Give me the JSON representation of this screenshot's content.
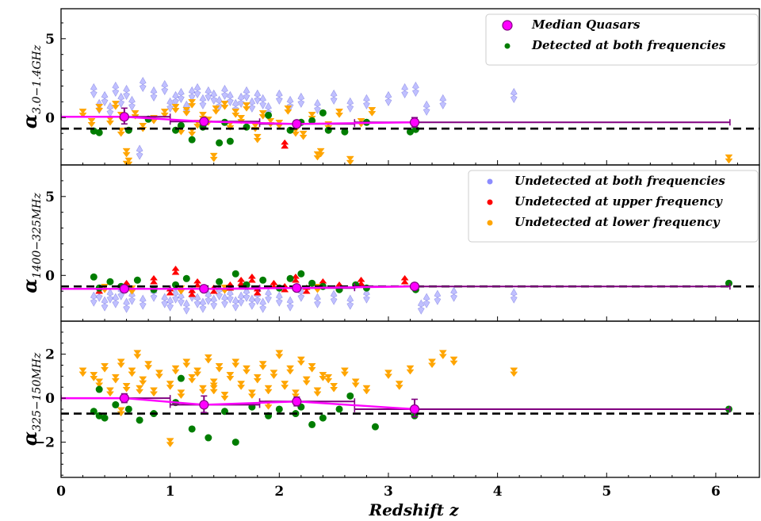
{
  "chart_data": {
    "type": "scatter",
    "x_axis": {
      "label": "Redshift z",
      "range": [
        0,
        6.4
      ],
      "ticks": [
        0,
        1,
        2,
        3,
        4,
        5,
        6
      ],
      "tick_labels": [
        "0",
        "1",
        "2",
        "3",
        "4",
        "5",
        "6"
      ]
    },
    "panels": [
      {
        "ylabel": "α3.0−1.4GHz",
        "ylabel_main": "α",
        "ylabel_sub": "3.0−1.4GHz",
        "ylim": [
          -3.0,
          6.9
        ],
        "yticks": [
          0,
          5
        ],
        "ytick_labels": [
          "0",
          "5"
        ],
        "reference_line": -0.7,
        "median": {
          "z": [
            0.58,
            1.31,
            2.16,
            3.24
          ],
          "alpha": [
            0.05,
            -0.25,
            -0.4,
            -0.3
          ],
          "err_low": [
            0.45,
            0.2,
            0.2,
            0.3
          ],
          "err_high": [
            0.55,
            0.15,
            0.2,
            0.3
          ],
          "bin_edges": [
            0,
            1.0,
            1.82,
            2.69,
            6.13
          ]
        },
        "detected_both": {
          "z": [
            0.3,
            0.35,
            0.62,
            0.8,
            1.05,
            1.1,
            1.2,
            1.3,
            1.45,
            1.5,
            1.55,
            1.7,
            1.9,
            2.1,
            2.2,
            2.3,
            2.45,
            2.6,
            2.8,
            3.2,
            3.25,
            2.4
          ],
          "alpha": [
            -0.85,
            -0.95,
            -0.8,
            -0.1,
            -0.8,
            -0.5,
            -1.4,
            -0.6,
            -1.6,
            -0.3,
            -1.5,
            -0.6,
            0.15,
            -0.8,
            -0.3,
            -0.2,
            -0.8,
            -0.9,
            -0.3,
            -0.9,
            -0.75,
            0.3
          ]
        },
        "undetected_upper": {
          "z": [
            2.05
          ],
          "alpha": [
            -1.7
          ]
        },
        "undetected_lower": {
          "z": [
            0.2,
            0.28,
            0.35,
            0.45,
            0.5,
            0.55,
            0.6,
            0.62,
            0.68,
            0.75,
            0.85,
            0.95,
            1.05,
            1.1,
            1.15,
            1.2,
            1.25,
            1.3,
            1.35,
            1.42,
            1.5,
            1.55,
            1.6,
            1.65,
            1.7,
            1.78,
            1.85,
            1.92,
            2.0,
            2.08,
            2.15,
            2.22,
            2.3,
            2.38,
            2.45,
            2.55,
            2.65,
            2.75,
            2.85,
            6.12,
            0.55,
            0.6,
            1.2,
            1.4,
            1.8,
            2.35
          ],
          "alpha": [
            0.3,
            -0.3,
            0.6,
            -0.2,
            0.8,
            -0.9,
            -2.2,
            -2.8,
            0.2,
            -0.6,
            -0.1,
            0.3,
            0.6,
            -0.8,
            0.4,
            0.9,
            -0.4,
            0.1,
            -0.2,
            0.5,
            0.8,
            -0.5,
            0.3,
            -0.1,
            0.7,
            -0.6,
            0.2,
            -0.3,
            -0.4,
            0.5,
            -0.9,
            -1.1,
            0.1,
            -2.2,
            -0.5,
            0.3,
            -2.7,
            -0.3,
            0.4,
            -2.6,
            0.1,
            -3.0,
            -0.9,
            -2.5,
            -1.3,
            -2.4
          ]
        },
        "undetected_both": {
          "z": [
            0.3,
            0.35,
            0.4,
            0.45,
            0.5,
            0.55,
            0.6,
            0.65,
            0.75,
            0.85,
            0.95,
            1.0,
            1.05,
            1.1,
            1.15,
            1.2,
            1.25,
            1.3,
            1.35,
            1.4,
            1.45,
            1.5,
            1.55,
            1.6,
            1.65,
            1.7,
            1.75,
            1.8,
            1.85,
            1.9,
            2.0,
            2.1,
            2.2,
            2.35,
            2.5,
            2.65,
            2.8,
            3.0,
            3.15,
            3.25,
            3.35,
            3.5,
            4.15,
            0.72
          ],
          "alpha": [
            1.7,
            0.7,
            1.2,
            0.5,
            1.8,
            1.1,
            1.6,
            0.9,
            2.1,
            1.5,
            1.9,
            0.8,
            1.2,
            1.4,
            0.6,
            1.5,
            1.7,
            1.0,
            1.5,
            1.3,
            0.9,
            1.6,
            1.2,
            0.7,
            1.1,
            1.5,
            0.8,
            1.3,
            1.0,
            0.5,
            1.3,
            0.9,
            1.1,
            0.7,
            1.3,
            0.8,
            1.0,
            1.2,
            1.7,
            1.8,
            0.6,
            1.0,
            1.4,
            -2.2
          ]
        }
      },
      {
        "ylabel": "α1400−325MHz",
        "ylabel_main": "α",
        "ylabel_sub": "1400−325MHz",
        "ylim": [
          -2.9,
          7.0
        ],
        "yticks": [
          0,
          5
        ],
        "ytick_labels": [
          "0",
          "5"
        ],
        "reference_line": -0.7,
        "median": {
          "z": [
            0.58,
            1.31,
            2.16,
            3.24
          ],
          "alpha": [
            -0.85,
            -0.85,
            -0.8,
            -0.7
          ],
          "err_low": [
            0.1,
            0.1,
            0.1,
            0.1
          ],
          "err_high": [
            0.1,
            0.1,
            0.1,
            0.1
          ],
          "bin_edges": [
            0,
            1.0,
            1.82,
            2.69,
            6.13
          ]
        },
        "detected_both": {
          "z": [
            0.3,
            0.35,
            0.45,
            0.55,
            0.7,
            0.85,
            1.05,
            1.15,
            1.3,
            1.45,
            1.6,
            1.7,
            1.85,
            2.0,
            2.1,
            2.2,
            2.3,
            2.4,
            2.55,
            2.7,
            2.8,
            3.25,
            6.12
          ],
          "alpha": [
            -0.1,
            -0.8,
            -0.4,
            -0.7,
            -0.3,
            -0.9,
            -0.6,
            -0.2,
            -0.8,
            -0.4,
            0.1,
            -0.6,
            -0.3,
            -0.8,
            -0.2,
            0.1,
            -0.5,
            -0.7,
            -0.9,
            -0.6,
            -0.8,
            -0.9,
            -0.5
          ]
        },
        "undetected_upper": {
          "z": [
            0.35,
            0.6,
            0.85,
            1.0,
            1.05,
            1.25,
            1.4,
            1.55,
            1.65,
            1.8,
            1.95,
            2.05,
            2.15,
            2.25,
            2.4,
            2.55,
            2.75,
            3.15,
            1.2,
            1.75
          ],
          "alpha": [
            -0.9,
            -0.6,
            -0.3,
            -1.0,
            0.3,
            -0.5,
            -0.9,
            -0.7,
            -0.4,
            -1.0,
            -0.6,
            -0.8,
            -0.2,
            -0.9,
            -0.5,
            -0.7,
            -0.4,
            -0.3,
            -1.1,
            -0.2
          ]
        },
        "undetected_lower": {
          "z": [
            0.4,
            0.65,
            1.1,
            1.5,
            2.35
          ],
          "alpha": [
            -0.8,
            -0.9,
            -0.9,
            -0.85,
            -0.8
          ]
        },
        "undetected_both": {
          "z": [
            0.3,
            0.35,
            0.4,
            0.45,
            0.5,
            0.55,
            0.6,
            0.65,
            0.75,
            0.85,
            0.95,
            1.0,
            1.05,
            1.1,
            1.15,
            1.2,
            1.25,
            1.3,
            1.35,
            1.4,
            1.45,
            1.5,
            1.55,
            1.6,
            1.65,
            1.7,
            1.75,
            1.8,
            1.85,
            1.9,
            2.0,
            2.1,
            2.2,
            2.35,
            2.5,
            2.65,
            2.8,
            3.3,
            3.35,
            3.45,
            3.6,
            4.15
          ],
          "alpha": [
            -1.5,
            -1.2,
            -1.8,
            -1.3,
            -1.6,
            -1.1,
            -1.9,
            -1.4,
            -1.7,
            -1.2,
            -1.6,
            -1.8,
            -1.3,
            -1.5,
            -2.0,
            -1.2,
            -1.6,
            -1.9,
            -1.4,
            -1.7,
            -1.1,
            -1.6,
            -1.3,
            -1.8,
            -1.5,
            -1.2,
            -1.7,
            -1.4,
            -1.9,
            -1.3,
            -1.5,
            -1.8,
            -1.2,
            -1.6,
            -1.4,
            -1.7,
            -1.3,
            -2.0,
            -1.6,
            -1.4,
            -1.2,
            -1.3
          ]
        }
      },
      {
        "ylabel": "α325−150MHz",
        "ylabel_main": "α",
        "ylabel_sub": "325−150MHz",
        "ylim": [
          -3.6,
          3.5
        ],
        "yticks": [
          -2,
          0,
          2
        ],
        "ytick_labels": [
          "−2",
          "0",
          "2"
        ],
        "reference_line": -0.7,
        "median": {
          "z": [
            0.58,
            1.31,
            2.16,
            3.24
          ],
          "alpha": [
            0.0,
            -0.3,
            -0.15,
            -0.5
          ],
          "err_low": [
            0.2,
            0.35,
            0.2,
            0.35
          ],
          "err_high": [
            0.2,
            0.4,
            0.2,
            0.45
          ],
          "bin_edges": [
            0,
            1.0,
            1.82,
            2.69,
            6.13
          ]
        },
        "detected_both": {
          "z": [
            0.3,
            0.35,
            0.4,
            0.5,
            0.62,
            0.72,
            0.85,
            1.05,
            1.2,
            1.35,
            1.5,
            1.6,
            1.75,
            1.9,
            2.0,
            2.15,
            2.3,
            2.4,
            2.55,
            2.65,
            2.88,
            3.24,
            6.12,
            0.35,
            1.1,
            2.2
          ],
          "alpha": [
            -0.6,
            0.4,
            -0.9,
            -0.3,
            -0.5,
            -1.0,
            -0.7,
            -0.2,
            -1.4,
            -1.8,
            -0.6,
            -2.0,
            -0.4,
            -0.8,
            -0.5,
            -0.7,
            -1.2,
            -0.9,
            -0.5,
            0.1,
            -1.3,
            -0.8,
            -0.5,
            -0.8,
            0.9,
            -0.4
          ]
        },
        "undetected_upper": {
          "z": [],
          "alpha": []
        },
        "undetected_lower": {
          "z": [
            0.2,
            0.3,
            0.35,
            0.4,
            0.45,
            0.5,
            0.55,
            0.6,
            0.65,
            0.7,
            0.75,
            0.8,
            0.85,
            0.9,
            1.0,
            1.05,
            1.1,
            1.15,
            1.2,
            1.25,
            1.3,
            1.35,
            1.4,
            1.45,
            1.5,
            1.55,
            1.6,
            1.65,
            1.7,
            1.75,
            1.8,
            1.85,
            1.9,
            1.95,
            2.0,
            2.05,
            2.1,
            2.15,
            2.2,
            2.25,
            2.3,
            2.35,
            2.4,
            2.5,
            2.6,
            2.7,
            2.8,
            3.0,
            3.1,
            3.2,
            3.4,
            3.5,
            3.6,
            4.15,
            1.0,
            0.55,
            1.4,
            1.9,
            2.45,
            0.72
          ],
          "alpha": [
            1.2,
            1.0,
            0.7,
            1.4,
            0.3,
            0.9,
            1.6,
            0.5,
            1.2,
            2.0,
            0.8,
            1.5,
            0.3,
            1.1,
            0.6,
            1.3,
            0.2,
            1.6,
            0.9,
            1.2,
            0.4,
            1.8,
            0.7,
            1.4,
            0.1,
            1.0,
            1.6,
            0.6,
            1.3,
            0.2,
            0.9,
            1.5,
            0.4,
            1.1,
            2.0,
            0.6,
            1.3,
            0.2,
            1.7,
            0.8,
            1.4,
            0.3,
            1.0,
            0.5,
            1.2,
            0.7,
            0.4,
            1.1,
            0.6,
            1.3,
            1.6,
            2.0,
            1.7,
            1.2,
            -2.0,
            -0.6,
            0.4,
            -0.3,
            0.9,
            0.4
          ]
        },
        "undetected_both": {
          "z": [],
          "alpha": []
        }
      }
    ],
    "legend": {
      "panel1": [
        {
          "label": "Median Quasars",
          "marker": "magenta-circle-large"
        },
        {
          "label": "Detected at both frequencies",
          "marker": "green-dot"
        }
      ],
      "panel2": [
        {
          "label": "Undetected at both frequencies",
          "marker": "blue-dot"
        },
        {
          "label": "Undetected at upper frequency",
          "marker": "red-dot"
        },
        {
          "label": "Undetected at lower frequency",
          "marker": "orange-dot"
        }
      ],
      "placement": "top-right"
    },
    "colors": {
      "median": "#ff00ff",
      "median_edge": "#800080",
      "detected_both": "#007d00",
      "undetected_upper": "#ff0000",
      "undetected_lower": "#ffa500",
      "undetected_both": "#8c8cff",
      "reference_line": "#000000"
    }
  }
}
